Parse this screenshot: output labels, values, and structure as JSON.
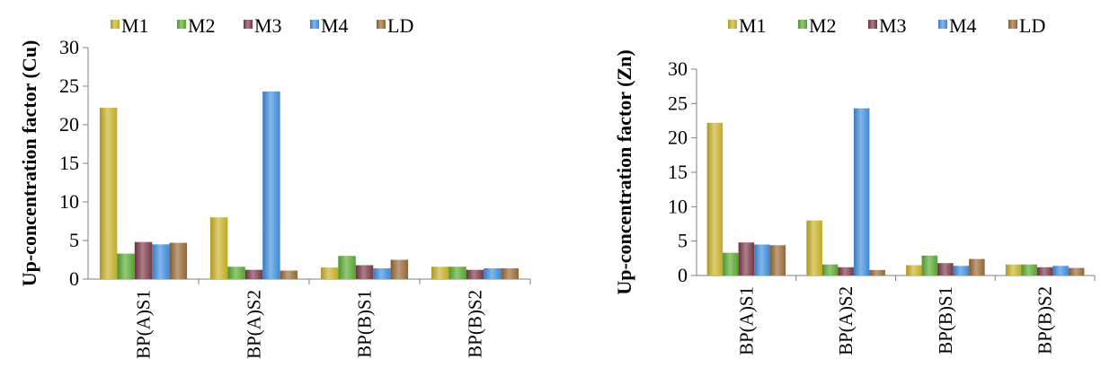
{
  "chart_data": [
    {
      "type": "bar",
      "title": "",
      "xlabel": "",
      "ylabel": "Up-concentration factor (Cu)",
      "ylim": [
        0,
        30
      ],
      "yticks": [
        0,
        5,
        10,
        15,
        20,
        25,
        30
      ],
      "grid": false,
      "legend": "top",
      "categories": [
        "BP(A)S1",
        "BP(A)S2",
        "BP(B)S1",
        "BP(B)S2"
      ],
      "series": [
        {
          "name": "M1",
          "color": "#c9b227",
          "values": [
            22.2,
            8.0,
            1.5,
            1.6
          ]
        },
        {
          "name": "M2",
          "color": "#5aab30",
          "values": [
            3.3,
            1.6,
            3.0,
            1.6
          ]
        },
        {
          "name": "M3",
          "color": "#7b3a4a",
          "values": [
            4.8,
            1.2,
            1.8,
            1.2
          ]
        },
        {
          "name": "M4",
          "color": "#3f8fe0",
          "values": [
            4.5,
            24.3,
            1.4,
            1.4
          ]
        },
        {
          "name": "LD",
          "color": "#9a6a35",
          "values": [
            4.7,
            1.1,
            2.5,
            1.4
          ]
        }
      ]
    },
    {
      "type": "bar",
      "title": "",
      "xlabel": "",
      "ylabel": "Up-concentration factor (Zn)",
      "ylim": [
        0,
        30
      ],
      "yticks": [
        0,
        5,
        10,
        15,
        20,
        25,
        30
      ],
      "grid": false,
      "legend": "top",
      "categories": [
        "BP(A)S1",
        "BP(A)S2",
        "BP(B)S1",
        "BP(B)S2"
      ],
      "series": [
        {
          "name": "M1",
          "color": "#c9b227",
          "values": [
            22.2,
            8.0,
            1.5,
            1.6
          ]
        },
        {
          "name": "M2",
          "color": "#5aab30",
          "values": [
            3.3,
            1.6,
            2.9,
            1.6
          ]
        },
        {
          "name": "M3",
          "color": "#7b3a4a",
          "values": [
            4.8,
            1.2,
            1.8,
            1.2
          ]
        },
        {
          "name": "M4",
          "color": "#3f8fe0",
          "values": [
            4.5,
            24.3,
            1.4,
            1.4
          ]
        },
        {
          "name": "LD",
          "color": "#9a6a35",
          "values": [
            4.4,
            0.8,
            2.4,
            1.1
          ]
        }
      ]
    }
  ]
}
